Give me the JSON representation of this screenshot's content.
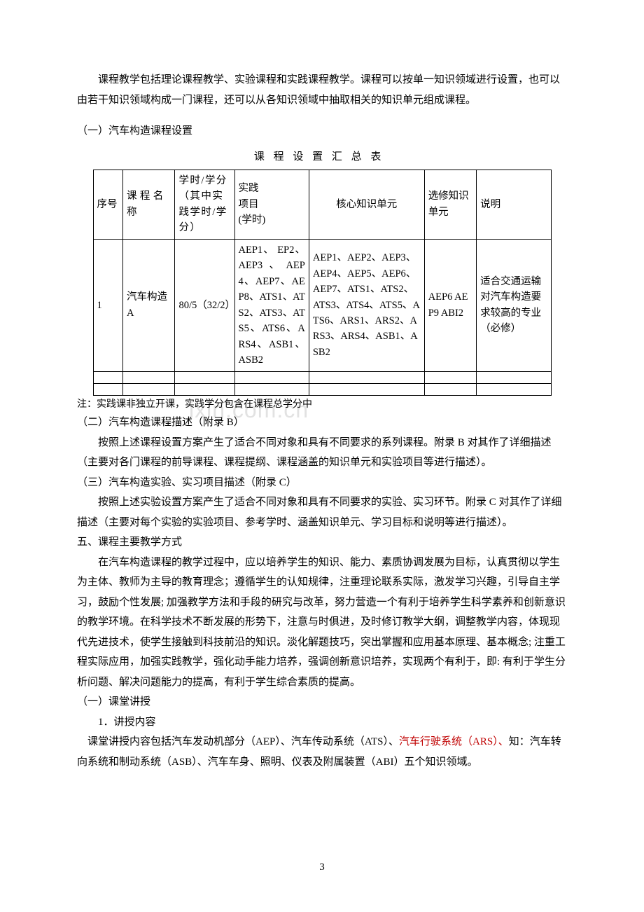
{
  "intro_para": "课程教学包括理论课程教学、实验课程和实践课程教学。课程可以按单一知识领域进行设置，也可以由若干知识领域构成一门课程，还可以从各知识领域中抽取相关的知识单元组成课程。",
  "section1_heading": "（一）汽车构造课程设置",
  "table_title": "课程设置汇总表",
  "table": {
    "headers": {
      "col0": "序号",
      "col1": "课程名称",
      "col2": "学时/学分（其中实践学时/学分）",
      "col3_line1": "实践",
      "col3_line2": "项目",
      "col3_line3": "(学时)",
      "col4": "核心知识单元",
      "col5": "选修知识单元",
      "col6": "说明"
    },
    "row1": {
      "col0": "1",
      "col1": "汽车构造 A",
      "col2": "80/5（32/2）",
      "col3": "AEP1、 EP2、AEP3、AEP4、AEP7、AEP8、ATS1、ATS2、ATS3、ATS5、ATS6、ARS4、ASB1、ASB2",
      "col4": "AEP1、AEP2、AEP3、AEP4、AEP5、AEP6、AEP7、ATS1、ATS2、ATS3、ATS4、ATS5、ATS6、ARS1、ARS2、ARS3、ARS4、ASB1、ASB2",
      "col5": "AEP6 AEP9 ABI2",
      "col6": "适合交通运输对汽车构造要求较高的专业（必修）"
    }
  },
  "table_note": "注：实践课非独立开课，实践学分包含在课程总学分中",
  "section2_heading": "（二）汽车构造课程描述（附录 B）",
  "section2_para": "按照上述课程设置方案产生了适合不同对象和具有不同要求的系列课程。附录 B 对其作了详细描述（主要对各门课程的前导课程、课程提纲、课程涵盖的知识单元和实验项目等进行描述）。",
  "section3_heading": "（三）汽车构造实验、实习项目描述（附录 C）",
  "section3_para": "按照上述实验设置方案产生了适合不同对象和具有不同要求的实验、实习环节。附录 C 对其作了详细描述（主要对每个实验的实验项目、参考学时、涵盖知识单元、学习目标和说明等进行描述）。",
  "section5_heading": "五、课程主要教学方式",
  "section5_para": "在汽车构造课程的教学过程中，应以培养学生的知识、能力、素质协调发展为目标，认真贯彻以学生为主体、教师为主导的教育理念；遵循学生的认知规律，注重理论联系实际，激发学习兴趣，引导自主学习，鼓励个性发展; 加强教学方法和手段的研究与改革，努力营造一个有利于培养学生科学素养和创新意识的教学环境。在科学技术不断发展的形势下，注意与时俱进，及时修订教学大纲，调整教学内容，体现现代先进技术，使学生接触到科技前沿的知识。淡化解题技巧，突出掌握和应用基本原理、基本概念; 注重工程实际应用，加强实践教学，强化动手能力培养，强调创新意识培养，实现两个有利于，即: 有利于学生分析问题、解决问题能力的提高，有利于学生综合素质的提高。",
  "sub1_heading": "（一）课堂讲授",
  "sub1_1_heading": "1．讲授内容",
  "sub1_1_para_prefix": "课堂讲授内容包括汽车发动机部分（AEP）、汽车传动系统（ATS）、",
  "sub1_1_para_red": "汽车行驶系统（ARS）、",
  "sub1_1_para_suffix": "知：汽车转向系统和制动系统（ASB）、汽车车身、照明、仪表及附属装置（ABI）五个知识领域。",
  "watermark": "ixin.com.cn",
  "page_number": "3"
}
